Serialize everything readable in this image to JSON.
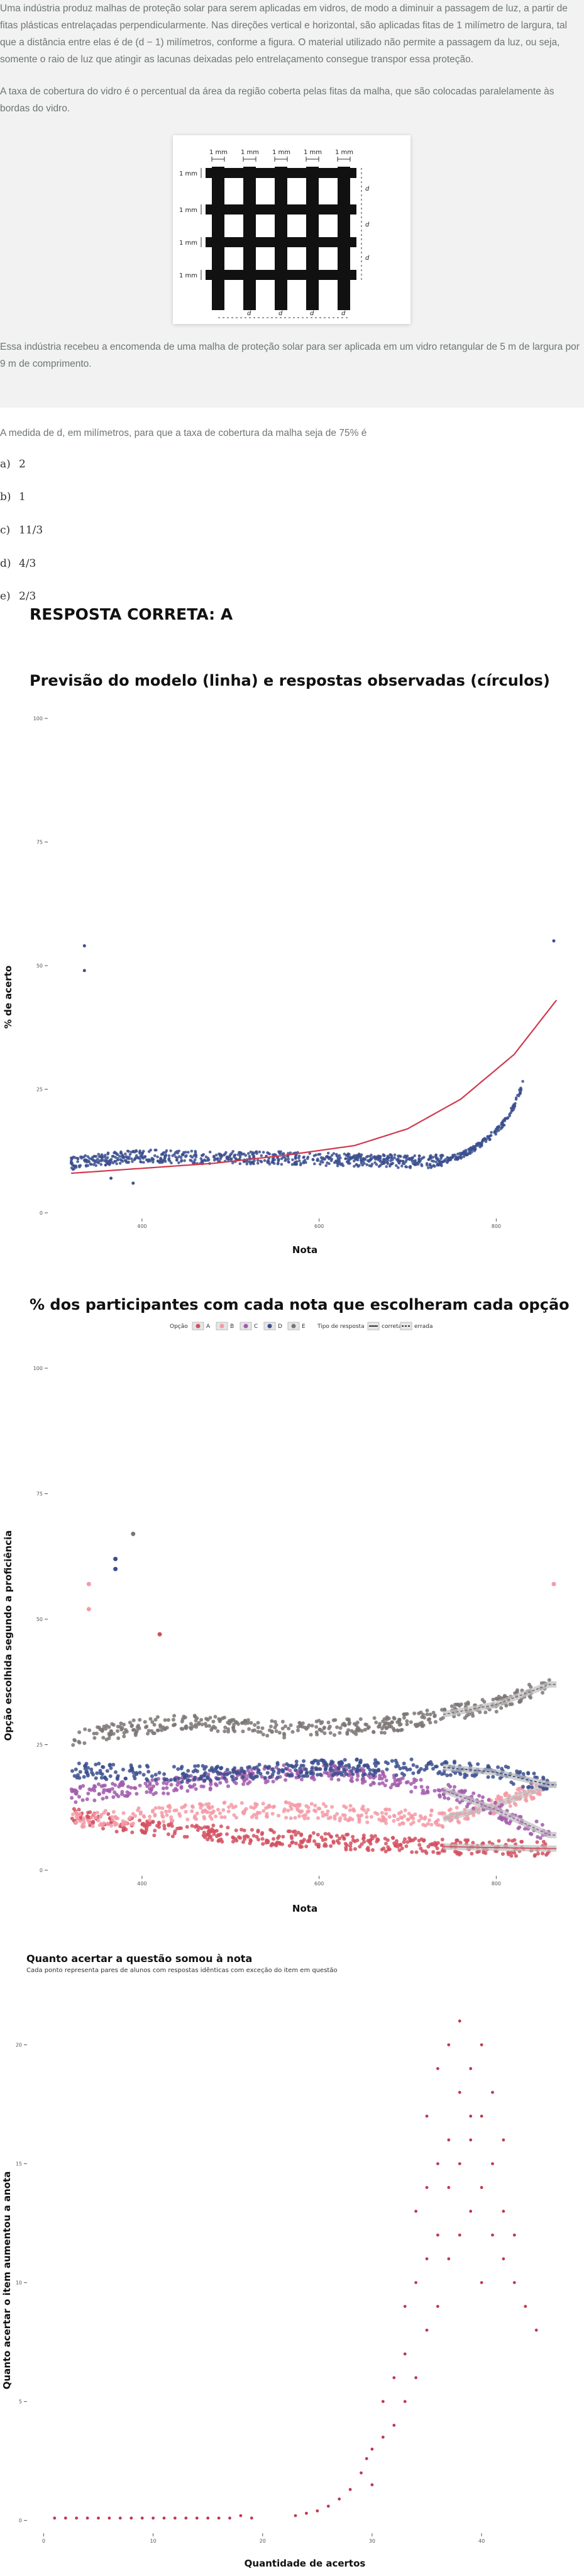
{
  "question": {
    "paragraph1": "Uma indústria produz malhas de proteção solar para serem aplicadas em vidros, de modo a diminuir a passagem de luz, a partir de fitas plásticas entrelaçadas perpendicularmente. Nas direções vertical e horizontal, são aplicadas fitas de 1 milímetro de largura, tal que a distância entre elas é de (d − 1) milímetros, conforme a figura. O material utilizado não permite a passagem da luz, ou seja, somente o raio de luz que atingir as lacunas deixadas pelo entrelaçamento consegue transpor essa proteção.",
    "paragraph2": "A taxa de cobertura do vidro é o percentual da área da região coberta pelas fitas da malha, que são colocadas paralelamente às bordas do vidro.",
    "paragraph3": "Essa indústria recebeu a encomenda de uma malha de proteção solar para ser aplicada em um vidro retangular de 5 m de largura por 9 m de comprimento.",
    "prompt": "A medida de d, em milímetros, para que a taxa de cobertura da malha seja de 75% é",
    "figure": {
      "top_label": "1 mm",
      "left_label": "1 mm",
      "right_label": "d",
      "bottom_label": "d"
    },
    "options": [
      {
        "letter": "a)",
        "text": "2"
      },
      {
        "letter": "b)",
        "text": "1"
      },
      {
        "letter": "c)",
        "text": "11/3"
      },
      {
        "letter": "d)",
        "text": "4/3"
      },
      {
        "letter": "e)",
        "text": "2/3"
      }
    ]
  },
  "answer_label": "RESPOSTA CORRETA: A",
  "chart_data": [
    {
      "type": "scatter",
      "title": "Previsão do modelo (linha) e respostas observadas (círculos)",
      "xlabel": "Nota",
      "ylabel": "% de acerto",
      "x_ticks": [
        "400",
        "600",
        "800"
      ],
      "y_ticks": [
        "0",
        "25",
        "50",
        "75",
        "100"
      ],
      "xlim": [
        300,
        870
      ],
      "ylim": [
        0,
        100
      ],
      "grid": false,
      "point_color": "#3b4f8e",
      "model_color": "#d0394d",
      "observed_series": [
        {
          "x": [
            320,
            350,
            380,
            410,
            440,
            470,
            500,
            530,
            560,
            590,
            620,
            650,
            680,
            710,
            740,
            750,
            760,
            770,
            780,
            790,
            800,
            810,
            820,
            830
          ],
          "y": [
            10,
            10.8,
            11.3,
            11.5,
            11.3,
            11.2,
            11.2,
            11.1,
            11.1,
            10.9,
            10.8,
            10.6,
            10.5,
            10.3,
            10.5,
            11,
            11.6,
            12.5,
            13.6,
            15,
            16.5,
            18.5,
            21.5,
            26
          ]
        }
      ],
      "outliers": {
        "x": [
          335,
          335,
          365,
          390,
          865
        ],
        "y": [
          54,
          49,
          7,
          6,
          55
        ]
      },
      "model": {
        "x": [
          320,
          400,
          480,
          560,
          640,
          700,
          760,
          820,
          868
        ],
        "y": [
          8,
          9,
          10,
          11.6,
          13.6,
          17,
          23,
          32,
          43
        ]
      }
    },
    {
      "type": "scatter",
      "title": "% dos participantes com cada nota que escolheram cada opção",
      "xlabel": "Nota",
      "ylabel": "Opção escolhida segundo a proficiência",
      "legend_title_option": "Opção",
      "legend_title_type": "Tipo de resposta",
      "legend_position": "top",
      "x_ticks": [
        "400",
        "600",
        "800"
      ],
      "y_ticks": [
        "0",
        "25",
        "50",
        "75",
        "100"
      ],
      "xlim": [
        300,
        870
      ],
      "ylim": [
        0,
        100
      ],
      "series": [
        {
          "name": "A",
          "color": "#d2505f",
          "x": [
            320,
            380,
            440,
            500,
            560,
            620,
            680,
            740,
            800,
            860
          ],
          "y": [
            11,
            9,
            8,
            7,
            6.3,
            5.7,
            5.2,
            4.7,
            4.5,
            4.3
          ]
        },
        {
          "name": "B",
          "color": "#f49aa6",
          "x": [
            320,
            380,
            440,
            500,
            560,
            620,
            680,
            740,
            800,
            860
          ],
          "y": [
            10,
            10.5,
            11.5,
            12,
            12,
            11.5,
            10.8,
            10.2,
            13,
            17
          ]
        },
        {
          "name": "C",
          "color": "#a15aab",
          "x": [
            320,
            380,
            440,
            500,
            560,
            620,
            680,
            740,
            800,
            860
          ],
          "y": [
            15,
            16,
            17,
            18,
            19.5,
            19.5,
            18,
            16,
            12,
            7
          ]
        },
        {
          "name": "D",
          "color": "#3b4f8e",
          "x": [
            320,
            380,
            440,
            500,
            560,
            620,
            680,
            740,
            800,
            860
          ],
          "y": [
            20,
            19.5,
            19,
            19.5,
            20,
            20.5,
            20.5,
            20.5,
            19.5,
            17
          ]
        },
        {
          "name": "E",
          "color": "#7b7574",
          "x": [
            320,
            380,
            440,
            500,
            560,
            620,
            680,
            740,
            800,
            860
          ],
          "y": [
            26,
            28,
            29.5,
            29,
            28,
            28.5,
            29,
            31,
            33,
            37
          ]
        }
      ],
      "types": [
        "correta",
        "errada"
      ],
      "outliers": {
        "x": [
          340,
          340,
          370,
          370,
          390,
          420,
          865
        ],
        "y": [
          57,
          52,
          62,
          60,
          67,
          47,
          57
        ],
        "series": [
          "B",
          "B",
          "D",
          "D",
          "E",
          "A",
          "B"
        ]
      }
    },
    {
      "type": "scatter",
      "title": "Quanto acertar a questão somou à nota",
      "subtitle": "Cada ponto representa pares de alunos com respostas idênticas com exceção do item em questão",
      "xlabel": "Quantidade de acertos",
      "ylabel": "Quanto acertar o item aumentou a anota",
      "x_ticks": [
        "0",
        "10",
        "20",
        "30",
        "40"
      ],
      "y_ticks": [
        "0",
        "5",
        "10",
        "15",
        "20"
      ],
      "xlim": [
        -1,
        47
      ],
      "ylim": [
        -0.3,
        22
      ],
      "point_color": "#c0394f",
      "points": {
        "x": [
          1,
          2,
          3,
          4,
          5,
          6,
          7,
          8,
          9,
          10,
          11,
          12,
          13,
          14,
          15,
          16,
          17,
          18,
          19,
          23,
          24,
          25,
          26,
          27,
          28,
          29,
          29.5,
          30,
          30,
          31,
          31,
          32,
          32,
          33,
          33,
          33,
          34,
          34,
          34,
          35,
          35,
          35,
          35,
          36,
          36,
          36,
          36,
          37,
          37,
          37,
          37,
          38,
          38,
          38,
          38,
          39,
          39,
          39,
          39,
          40,
          40,
          40,
          40,
          41,
          41,
          41,
          42,
          42,
          42,
          43,
          43,
          44,
          45
        ],
        "y": [
          0.1,
          0.1,
          0.1,
          0.1,
          0.1,
          0.1,
          0.1,
          0.1,
          0.1,
          0.1,
          0.1,
          0.1,
          0.1,
          0.1,
          0.1,
          0.1,
          0.1,
          0.2,
          0.1,
          0.2,
          0.3,
          0.4,
          0.6,
          0.9,
          1.3,
          2,
          2.6,
          1.5,
          3,
          3.5,
          5,
          4,
          6,
          5,
          7,
          9,
          6,
          10,
          13,
          8,
          11,
          14,
          17,
          9,
          12,
          15,
          19,
          11,
          14,
          16,
          20,
          12,
          15,
          18,
          21,
          13,
          16,
          17,
          19,
          10,
          14,
          17,
          20,
          12,
          15,
          18,
          11,
          13,
          16,
          10,
          12,
          9,
          8
        ]
      }
    }
  ]
}
